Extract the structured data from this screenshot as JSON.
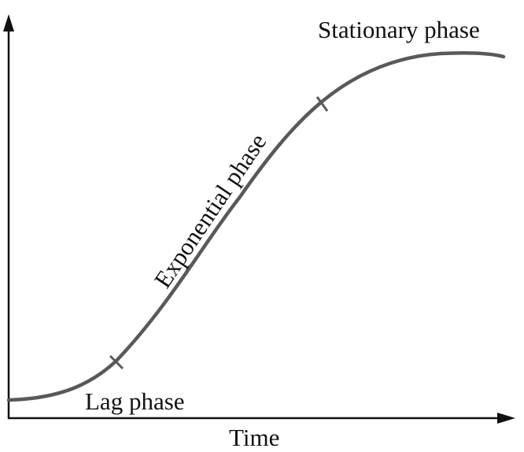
{
  "diagram": {
    "x_axis_label": "Time",
    "phases": {
      "lag": "Lag phase",
      "exponential": "Exponential phase",
      "stationary": "Stationary phase"
    },
    "colors": {
      "axis": "#111111",
      "curve": "#595959",
      "text": "#111111",
      "background": "#ffffff"
    }
  }
}
